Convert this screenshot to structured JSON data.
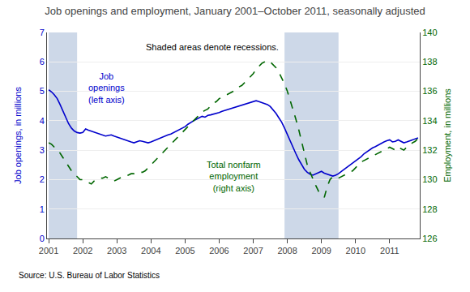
{
  "chart_data": {
    "type": "line",
    "title": "Job openings and employment, January 2001–October 2011, seasonally adjusted",
    "ylabel": "Job openings, in millions",
    "y2label": "Employment, in millions",
    "source": "Source: U.S. Bureau of Labor Statistics",
    "annotations": [
      "Shaded areas denote recessions."
    ],
    "spans": [
      {
        "start": 2001.0,
        "end": 2001.833,
        "color": "#cdd8e8"
      },
      {
        "start": 2007.917,
        "end": 2009.5,
        "color": "#cdd8e8"
      }
    ],
    "x": [
      2001.0,
      2001.0833,
      2001.1667,
      2001.25,
      2001.3333,
      2001.4167,
      2001.5,
      2001.5833,
      2001.6666,
      2001.75,
      2001.8333,
      2001.9166,
      2002.0,
      2002.0833,
      2002.1666,
      2002.25,
      2002.3333,
      2002.4166,
      2002.5,
      2002.5833,
      2002.6666,
      2002.7499,
      2002.8333,
      2002.9166,
      2002.9999,
      2003.0833,
      2003.1666,
      2003.2499,
      2003.3333,
      2003.4166,
      2003.4999,
      2003.5833,
      2003.6666,
      2003.7499,
      2003.8332,
      2003.9166,
      2003.9999,
      2004.0832,
      2004.1666,
      2004.2499,
      2004.3332,
      2004.4166,
      2004.4999,
      2004.5832,
      2004.6666,
      2004.7499,
      2004.8332,
      2004.9165,
      2004.9999,
      2005.0832,
      2005.1665,
      2005.2499,
      2005.3332,
      2005.4165,
      2005.4999,
      2005.5832,
      2005.6665,
      2005.7499,
      2005.8332,
      2005.9165,
      2005.9998,
      2006.0832,
      2006.1665,
      2006.2498,
      2006.3332,
      2006.4165,
      2006.4998,
      2006.5832,
      2006.6665,
      2006.7498,
      2006.8332,
      2006.9165,
      2006.9998,
      2007.0831,
      2007.1665,
      2007.2498,
      2007.3331,
      2007.4165,
      2007.4998,
      2007.5831,
      2007.6665,
      2007.7498,
      2007.8331,
      2007.9165,
      2007.9998,
      2008.0831,
      2008.1664,
      2008.2498,
      2008.3331,
      2008.4164,
      2008.4998,
      2008.5831,
      2008.6664,
      2008.7498,
      2008.8331,
      2008.9164,
      2008.9998,
      2009.0831,
      2009.1664,
      2009.2497,
      2009.3331,
      2009.4164,
      2009.4997,
      2009.5831,
      2009.6664,
      2009.7497,
      2009.8331,
      2009.9164,
      2009.9997,
      2010.0831,
      2010.1664,
      2010.2497,
      2010.333,
      2010.4164,
      2010.4997,
      2010.583,
      2010.6664,
      2010.7497,
      2010.833,
      2010.9164,
      2010.9997,
      2011.083,
      2011.1664,
      2011.2497,
      2011.333,
      2011.4163,
      2011.4997,
      2011.583,
      2011.6663,
      2011.7497,
      2011.833
    ],
    "xlim": [
      2000.95,
      2011.883
    ],
    "xticks": [
      2001,
      2002,
      2003,
      2004,
      2005,
      2006,
      2007,
      2008,
      2009,
      2010,
      2011
    ],
    "ylim": [
      0,
      7
    ],
    "yticks": [
      0,
      1,
      2,
      3,
      4,
      5,
      6,
      7
    ],
    "y2lim": [
      126,
      140
    ],
    "y2ticks": [
      126,
      128,
      130,
      132,
      134,
      136,
      138,
      140
    ],
    "grid": true,
    "legend": "none",
    "series": [
      {
        "name": "Job\nopenings\n(left axis)",
        "color": "#0000cc",
        "line_style": "solid",
        "values": [
          5.05,
          4.98,
          4.88,
          4.75,
          4.55,
          4.32,
          4.1,
          3.9,
          3.75,
          3.65,
          3.6,
          3.58,
          3.6,
          3.72,
          3.68,
          3.65,
          3.62,
          3.58,
          3.55,
          3.52,
          3.48,
          3.5,
          3.52,
          3.48,
          3.45,
          3.42,
          3.38,
          3.35,
          3.32,
          3.28,
          3.25,
          3.28,
          3.32,
          3.3,
          3.28,
          3.25,
          3.28,
          3.32,
          3.38,
          3.42,
          3.45,
          3.48,
          3.52,
          3.55,
          3.6,
          3.65,
          3.7,
          3.75,
          3.8,
          3.88,
          3.95,
          4.0,
          4.05,
          4.1,
          4.15,
          4.12,
          4.18,
          4.2,
          4.22,
          4.25,
          4.28,
          4.32,
          4.35,
          4.38,
          4.42,
          4.45,
          4.48,
          4.52,
          4.55,
          4.58,
          4.6,
          4.62,
          4.65,
          4.68,
          4.65,
          4.62,
          4.6,
          4.55,
          4.48,
          4.38,
          4.25,
          4.1,
          3.95,
          3.75,
          3.52,
          3.32,
          3.1,
          2.88,
          2.68,
          2.5,
          2.35,
          2.25,
          2.18,
          2.15,
          2.2,
          2.25,
          2.28,
          2.22,
          2.18,
          2.15,
          2.12,
          2.15,
          2.2,
          2.28,
          2.35,
          2.42,
          2.48,
          2.55,
          2.62,
          2.7,
          2.78,
          2.88,
          2.95,
          3.02,
          3.08,
          3.12,
          3.18,
          3.22,
          3.28,
          3.32,
          3.35,
          3.28,
          3.3,
          3.35,
          3.3,
          3.25,
          3.28,
          3.32,
          3.35,
          3.38,
          3.42
        ]
      },
      {
        "name": "Total nonfarm\nemployment\n(right axis)",
        "color": "#006600",
        "line_style": "dashed",
        "axis": "y2",
        "values": [
          132.5,
          132.4,
          132.2,
          132.0,
          131.8,
          131.5,
          131.2,
          130.9,
          130.6,
          130.4,
          130.2,
          130.0,
          130.0,
          129.9,
          129.8,
          129.7,
          129.9,
          130.0,
          130.1,
          130.1,
          130.2,
          130.1,
          130.0,
          129.9,
          130.0,
          130.1,
          130.2,
          130.3,
          130.3,
          130.4,
          130.4,
          130.5,
          130.5,
          130.5,
          130.6,
          130.8,
          131.0,
          131.2,
          131.4,
          131.6,
          131.8,
          132.0,
          132.2,
          132.4,
          132.6,
          132.8,
          133.0,
          133.2,
          133.4,
          133.6,
          133.8,
          134.0,
          134.2,
          134.4,
          134.6,
          134.7,
          134.8,
          135.0,
          135.2,
          135.3,
          135.5,
          135.6,
          135.7,
          135.8,
          135.9,
          136.0,
          136.1,
          136.3,
          136.4,
          136.6,
          136.8,
          137.0,
          137.2,
          137.5,
          137.7,
          137.9,
          138.0,
          138.1,
          138.0,
          137.8,
          137.6,
          137.3,
          136.9,
          136.5,
          136.0,
          135.4,
          134.8,
          134.1,
          133.4,
          132.6,
          131.8,
          131.0,
          130.5,
          130.0,
          129.6,
          129.2,
          129.0,
          128.8,
          129.5,
          130.0,
          130.2,
          130.2,
          130.1,
          130.2,
          130.3,
          130.4,
          130.5,
          130.6,
          130.8,
          131.0,
          131.2,
          131.3,
          131.4,
          131.5,
          131.6,
          131.7,
          131.8,
          131.9,
          132.0,
          132.1,
          132.2,
          132.1,
          132.0,
          132.2,
          132.1,
          132.0,
          132.2,
          132.3,
          132.5,
          132.6,
          132.8
        ]
      }
    ]
  }
}
